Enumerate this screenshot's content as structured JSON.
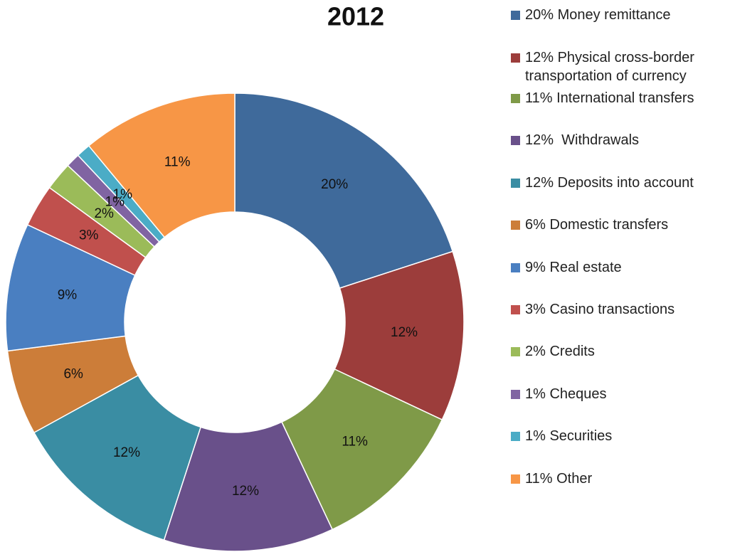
{
  "chart_data": {
    "type": "donut",
    "title": "2012",
    "categories": [
      "20% Money remittance",
      "12% Physical cross-border transportation of currency",
      "11% International transfers",
      "12%  Withdrawals",
      "12% Deposits into account",
      "6% Domestic transfers",
      "9% Real estate",
      "3% Casino transactions",
      "2% Credits",
      "1% Cheques",
      "1% Securities",
      "11% Other"
    ],
    "values": [
      20,
      12,
      11,
      12,
      12,
      6,
      9,
      3,
      2,
      1,
      1,
      11
    ],
    "value_labels": [
      "20%",
      "12%",
      "11%",
      "12%",
      "12%",
      "6%",
      "9%",
      "3%",
      "2%",
      "1%",
      "1%",
      "11%"
    ],
    "colors": [
      "#3f6a9b",
      "#9c3d3b",
      "#7f9a48",
      "#69508a",
      "#3a8da3",
      "#cc7d39",
      "#4a7fc1",
      "#c0504d",
      "#9bbb59",
      "#8064a2",
      "#4bacc6",
      "#f79646"
    ],
    "legend": "right"
  }
}
